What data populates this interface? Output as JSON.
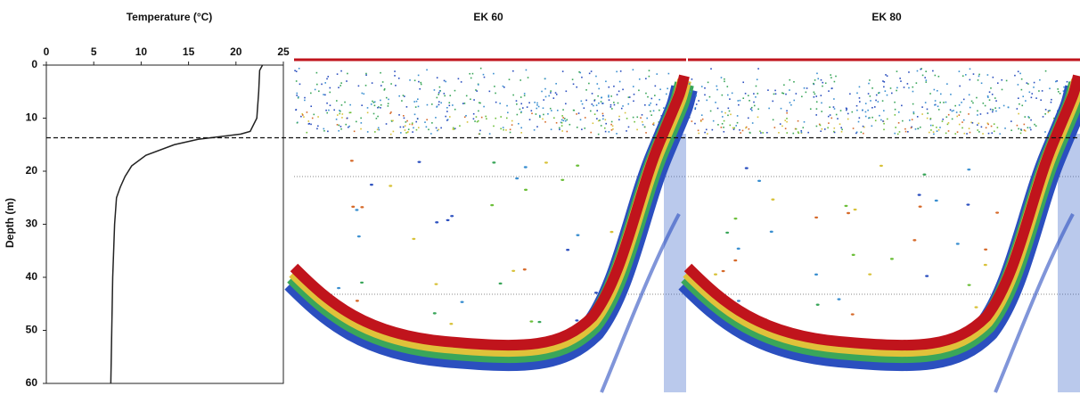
{
  "chart_data": {
    "type": "line",
    "title": "Temperature (°C)",
    "y_label": "Depth (m)",
    "x": [
      22.8,
      22.5,
      22.4,
      22.2,
      21.5,
      20.5,
      16,
      13.5,
      10.5,
      9,
      8.3,
      7.8,
      7.4,
      7.2,
      7.0,
      6.9,
      6.8
    ],
    "values": [
      0,
      1,
      5,
      10,
      12.5,
      13,
      14,
      15,
      17,
      19,
      21,
      23,
      25,
      30,
      40,
      50,
      60
    ],
    "color": "#222222",
    "xlim": [
      0,
      25
    ],
    "xticks": [
      0,
      5,
      10,
      15,
      20,
      25
    ],
    "ylim": [
      0,
      60
    ],
    "yticks": [
      0,
      10,
      20,
      30,
      40,
      50,
      60
    ],
    "y_inverted": true,
    "reference_depth": 13.7
  },
  "panels": [
    {
      "title": "EK 60"
    },
    {
      "title": "EK 80"
    }
  ]
}
